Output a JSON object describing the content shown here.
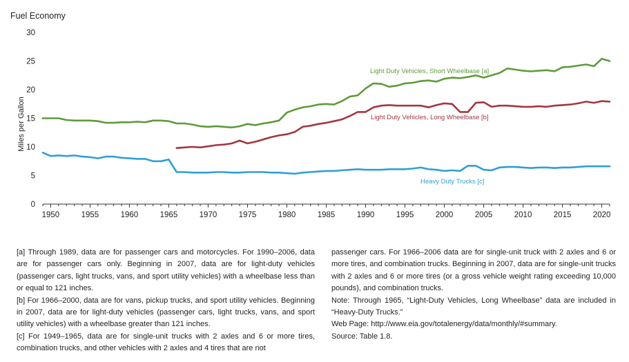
{
  "chart_data": {
    "type": "line",
    "title": "Fuel Economy",
    "ylabel": "Miles per Gallon",
    "xlim": [
      1949,
      2021
    ],
    "ylim": [
      0,
      30
    ],
    "x_ticks": [
      1950,
      1955,
      1960,
      1965,
      1970,
      1975,
      1980,
      1985,
      1990,
      1995,
      2000,
      2005,
      2010,
      2015,
      2020
    ],
    "y_ticks": [
      0,
      5,
      10,
      15,
      20,
      25,
      30
    ],
    "grid": false,
    "legend": "inline labels",
    "series": [
      {
        "name": "Light Duty Vehicles, Short Wheelbase [a]",
        "color": "#5e9a3a",
        "x": [
          1949,
          1950,
          1951,
          1952,
          1953,
          1954,
          1955,
          1956,
          1957,
          1958,
          1959,
          1960,
          1961,
          1962,
          1963,
          1964,
          1965,
          1966,
          1967,
          1968,
          1969,
          1970,
          1971,
          1972,
          1973,
          1974,
          1975,
          1976,
          1977,
          1978,
          1979,
          1980,
          1981,
          1982,
          1983,
          1984,
          1985,
          1986,
          1987,
          1988,
          1989,
          1990,
          1991,
          1992,
          1993,
          1994,
          1995,
          1996,
          1997,
          1998,
          1999,
          2000,
          2001,
          2002,
          2003,
          2004,
          2005,
          2006,
          2007,
          2008,
          2009,
          2010,
          2011,
          2012,
          2013,
          2014,
          2015,
          2016,
          2017,
          2018,
          2019,
          2020,
          2021
        ],
        "y": [
          15.0,
          15.0,
          15.0,
          14.7,
          14.6,
          14.6,
          14.6,
          14.5,
          14.2,
          14.2,
          14.3,
          14.3,
          14.4,
          14.3,
          14.6,
          14.6,
          14.5,
          14.1,
          14.1,
          13.9,
          13.6,
          13.5,
          13.6,
          13.5,
          13.4,
          13.6,
          14.0,
          13.8,
          14.1,
          14.3,
          14.6,
          16.0,
          16.5,
          16.9,
          17.1,
          17.4,
          17.5,
          17.4,
          18.0,
          18.8,
          19.0,
          20.2,
          21.1,
          21.0,
          20.5,
          20.7,
          21.1,
          21.2,
          21.5,
          21.6,
          21.4,
          21.9,
          22.1,
          22.0,
          22.2,
          22.5,
          22.1,
          22.5,
          22.9,
          23.7,
          23.5,
          23.3,
          23.2,
          23.3,
          23.4,
          23.2,
          23.9,
          24.0,
          24.2,
          24.4,
          24.1,
          25.4,
          25.0
        ]
      },
      {
        "name": "Light Duty Vehicles, Long Wheelbase [b]",
        "color": "#a33640",
        "x": [
          1966,
          1967,
          1968,
          1969,
          1970,
          1971,
          1972,
          1973,
          1974,
          1975,
          1976,
          1977,
          1978,
          1979,
          1980,
          1981,
          1982,
          1983,
          1984,
          1985,
          1986,
          1987,
          1988,
          1989,
          1990,
          1991,
          1992,
          1993,
          1994,
          1995,
          1996,
          1997,
          1998,
          1999,
          2000,
          2001,
          2002,
          2003,
          2004,
          2005,
          2006,
          2007,
          2008,
          2009,
          2010,
          2011,
          2012,
          2013,
          2014,
          2015,
          2016,
          2017,
          2018,
          2019,
          2020,
          2021
        ],
        "y": [
          9.8,
          9.9,
          10.0,
          9.9,
          10.1,
          10.3,
          10.4,
          10.6,
          11.1,
          10.6,
          10.9,
          11.3,
          11.7,
          12.0,
          12.2,
          12.6,
          13.5,
          13.7,
          14.0,
          14.2,
          14.5,
          14.8,
          15.4,
          16.1,
          16.1,
          16.9,
          17.2,
          17.3,
          17.2,
          17.2,
          17.2,
          17.2,
          16.9,
          17.3,
          17.6,
          17.5,
          16.1,
          16.1,
          17.7,
          17.8,
          17.0,
          17.2,
          17.2,
          17.1,
          17.0,
          17.0,
          17.1,
          17.0,
          17.2,
          17.3,
          17.4,
          17.6,
          17.9,
          17.7,
          18.0,
          17.9
        ]
      },
      {
        "name": "Heavy Duty Trucks [c]",
        "color": "#2e9fd6",
        "x": [
          1949,
          1950,
          1951,
          1952,
          1953,
          1954,
          1955,
          1956,
          1957,
          1958,
          1959,
          1960,
          1961,
          1962,
          1963,
          1964,
          1965,
          1966,
          1967,
          1968,
          1969,
          1970,
          1971,
          1972,
          1973,
          1974,
          1975,
          1976,
          1977,
          1978,
          1979,
          1980,
          1981,
          1982,
          1983,
          1984,
          1985,
          1986,
          1987,
          1988,
          1989,
          1990,
          1991,
          1992,
          1993,
          1994,
          1995,
          1996,
          1997,
          1998,
          1999,
          2000,
          2001,
          2002,
          2003,
          2004,
          2005,
          2006,
          2007,
          2008,
          2009,
          2010,
          2011,
          2012,
          2013,
          2014,
          2015,
          2016,
          2017,
          2018,
          2019,
          2020,
          2021
        ],
        "y": [
          9.0,
          8.4,
          8.5,
          8.4,
          8.5,
          8.3,
          8.2,
          8.0,
          8.3,
          8.3,
          8.1,
          8.0,
          7.9,
          7.9,
          7.5,
          7.5,
          7.8,
          5.6,
          5.6,
          5.5,
          5.5,
          5.5,
          5.6,
          5.6,
          5.5,
          5.5,
          5.6,
          5.6,
          5.6,
          5.5,
          5.5,
          5.4,
          5.3,
          5.5,
          5.6,
          5.7,
          5.8,
          5.8,
          5.9,
          6.0,
          6.1,
          6.0,
          6.0,
          6.0,
          6.1,
          6.1,
          6.1,
          6.2,
          6.4,
          6.1,
          6.0,
          5.8,
          5.9,
          5.8,
          6.7,
          6.7,
          6.0,
          5.9,
          6.4,
          6.5,
          6.5,
          6.4,
          6.3,
          6.4,
          6.4,
          6.3,
          6.4,
          6.4,
          6.5,
          6.6,
          6.6,
          6.6,
          6.6
        ]
      }
    ]
  },
  "notes": {
    "a": "[a] Through 1989, data are for passenger cars and motorcycles.  For 1990–2006, data are for passenger cars only.  Beginning in 2007, data are for light-duty vehicles (passenger cars, light trucks, vans, and sport utility vehicles) with a wheelbase less than or equal to 121 inches.",
    "b": "[b] For 1966–2000, data are for vans, pickup trucks, and sport utility vehicles.  Beginning in 2007, data are for light-duty vehicles (passenger cars, light trucks, vans, and sport utility vehicles) with a wheelbase greater than 121 inches.",
    "c": "[c] For 1949–1965, data are for single-unit trucks with 2 axles and 6 or more tires, combination trucks, and other vehicles with 2 axles and 4 tires that are not passenger cars.  For 1966–2006 data are for single-unit truck with 2 axles and 6 or more tires, and combination trucks.  Beginning in 2007, data are for single-unit trucks with 2 axles and 6 or more tires (or a gross vehicle weight rating exceeding 10,000 pounds), and combination trucks.",
    "note": "Note: Through 1965, “Light-Duty Vehicles, Long Wheelbase” data are included in “Heavy-Duty Trucks.”",
    "web": "Web Page:  http://www.eia.gov/totalenergy/data/monthly/#summary.",
    "source": "Source: Table 1.8."
  }
}
